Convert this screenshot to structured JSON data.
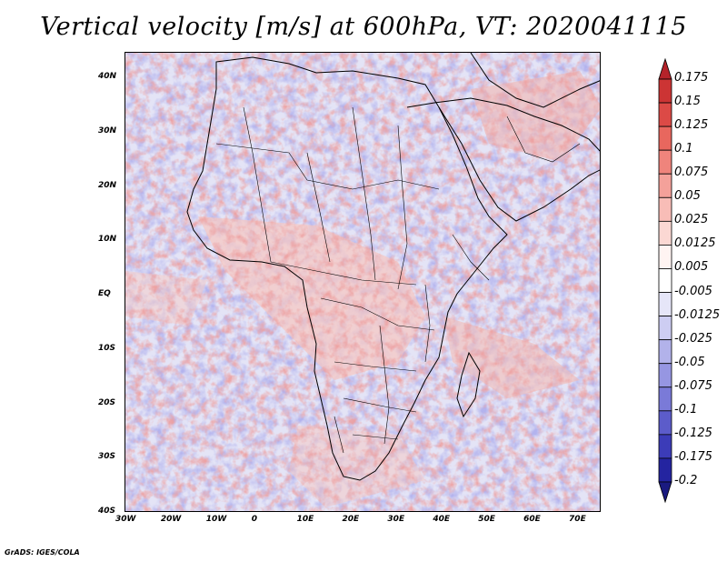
{
  "title": "Vertical velocity [m/s] at 600hPa, VT: 2020041115",
  "footer": "GrADS: IGES/COLA",
  "axes": {
    "lon_labels": [
      "30W",
      "20W",
      "10W",
      "0",
      "10E",
      "20E",
      "30E",
      "40E",
      "50E",
      "60E",
      "70E"
    ],
    "lat_labels": [
      "40N",
      "30N",
      "20N",
      "10N",
      "EQ",
      "10S",
      "20S",
      "30S",
      "40S"
    ]
  },
  "colorbar": {
    "labels": [
      "0.175",
      "0.15",
      "0.125",
      "0.1",
      "0.075",
      "0.05",
      "0.025",
      "0.0125",
      "0.005",
      "-0.005",
      "-0.0125",
      "-0.025",
      "-0.05",
      "-0.075",
      "-0.1",
      "-0.125",
      "-0.175",
      "-0.2"
    ],
    "colors": [
      "#b5232a",
      "#cc3434",
      "#dc4a46",
      "#e8675e",
      "#ef847c",
      "#f4a19a",
      "#f8bdb7",
      "#fbd8d3",
      "#fff4f2",
      "#ffffff",
      "#e6e6f8",
      "#cdcdf2",
      "#b2b2ea",
      "#9696e2",
      "#7a7ad8",
      "#5c5cca",
      "#3c3cb8",
      "#2424a0",
      "#1a1a80"
    ]
  },
  "colors": {
    "background": "#ececf6",
    "coast": "#000000",
    "land_upward": "#ef9a94",
    "ocean_downward": "#a8a8e8"
  }
}
